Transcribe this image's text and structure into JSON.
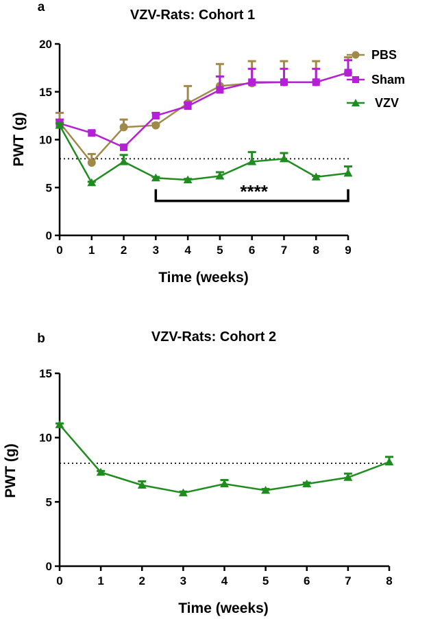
{
  "chart_data": [
    {
      "type": "line",
      "panel_label": "a",
      "title": "VZV-Rats: Cohort 1",
      "xlabel": "Time (weeks)",
      "ylabel": "PWT (g)",
      "x": [
        0,
        1,
        2,
        3,
        4,
        5,
        6,
        7,
        8,
        9
      ],
      "xlim": [
        0,
        9
      ],
      "ylim": [
        0,
        20
      ],
      "xticks": [
        "0",
        "1",
        "2",
        "3",
        "4",
        "5",
        "6",
        "7",
        "8",
        "9"
      ],
      "yticks": [
        "0",
        "5",
        "10",
        "15",
        "20"
      ],
      "threshold": 8,
      "series": [
        {
          "name": "PBS",
          "color": "#a08a4a",
          "marker": "circle",
          "values": [
            11.8,
            7.6,
            11.3,
            11.5,
            13.8,
            15.6,
            15.9,
            16.0,
            16.0,
            17.0
          ],
          "errors": [
            1.0,
            0.9,
            0.8,
            0.2,
            1.8,
            2.3,
            2.3,
            2.2,
            2.2,
            1.6
          ]
        },
        {
          "name": "Sham",
          "color": "#b51fd6",
          "marker": "square",
          "values": [
            11.7,
            10.7,
            9.2,
            12.5,
            13.5,
            15.2,
            16.0,
            16.0,
            16.0,
            17.0
          ],
          "errors": [
            0.4,
            0.2,
            0.2,
            0.3,
            0.4,
            1.4,
            1.4,
            1.4,
            1.4,
            1.3
          ]
        },
        {
          "name": "VZV",
          "color": "#1f8c1f",
          "marker": "triangle",
          "values": [
            11.5,
            5.5,
            7.7,
            6.0,
            5.8,
            6.2,
            7.7,
            8.0,
            6.1,
            6.5
          ],
          "errors": [
            0.2,
            0.1,
            0.7,
            0.1,
            0.1,
            0.4,
            1.0,
            0.6,
            0.1,
            0.7
          ]
        }
      ],
      "significance": {
        "label": "****",
        "from_x": 3,
        "to_x": 9,
        "y": 3.6
      }
    },
    {
      "type": "line",
      "panel_label": "b",
      "title": "VZV-Rats: Cohort 2",
      "xlabel": "Time (weeks)",
      "ylabel": "PWT (g)",
      "x": [
        0,
        1,
        2,
        3,
        4,
        5,
        6,
        7,
        8
      ],
      "xlim": [
        0,
        8
      ],
      "ylim": [
        0,
        15
      ],
      "xticks": [
        "0",
        "1",
        "2",
        "3",
        "4",
        "5",
        "6",
        "7",
        "8"
      ],
      "yticks": [
        "0",
        "5",
        "10",
        "15"
      ],
      "threshold": 8,
      "series": [
        {
          "name": "VZV",
          "color": "#1f8c1f",
          "marker": "triangle",
          "values": [
            11.0,
            7.3,
            6.3,
            5.7,
            6.4,
            5.9,
            6.4,
            6.9,
            8.1
          ],
          "errors": [
            0.1,
            0.1,
            0.3,
            0.1,
            0.3,
            0.1,
            0.1,
            0.3,
            0.4
          ]
        }
      ]
    }
  ]
}
